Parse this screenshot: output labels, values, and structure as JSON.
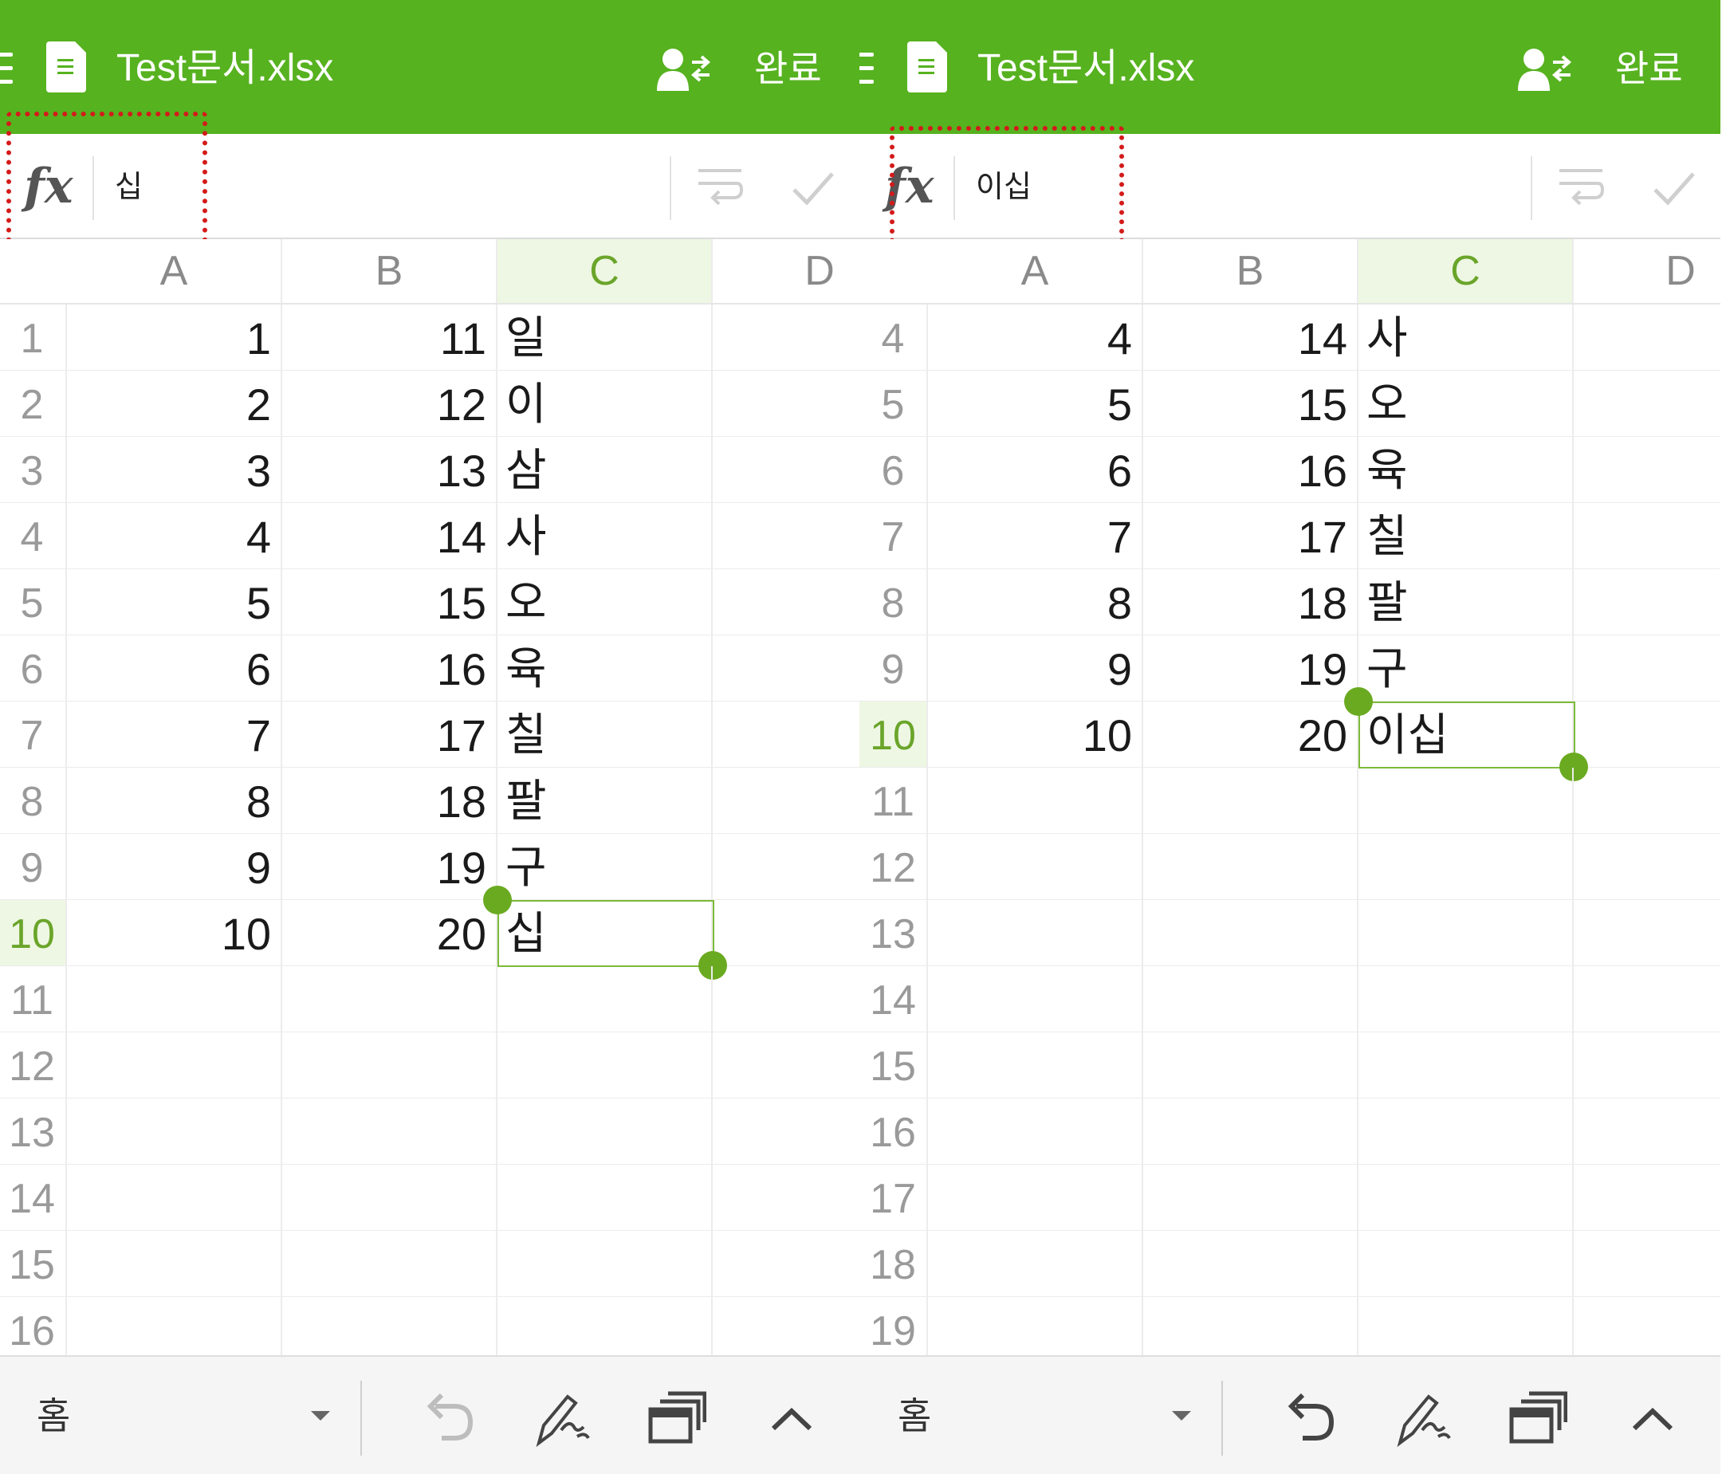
{
  "left": {
    "title": "Test문서.xlsx",
    "done": "완료",
    "formula": "십",
    "columns": [
      "A",
      "B",
      "C",
      "D"
    ],
    "selected_column": "C",
    "rows": [
      {
        "n": "1",
        "a": "1",
        "b": "11",
        "c": "일"
      },
      {
        "n": "2",
        "a": "2",
        "b": "12",
        "c": "이"
      },
      {
        "n": "3",
        "a": "3",
        "b": "13",
        "c": "삼"
      },
      {
        "n": "4",
        "a": "4",
        "b": "14",
        "c": "사"
      },
      {
        "n": "5",
        "a": "5",
        "b": "15",
        "c": "오"
      },
      {
        "n": "6",
        "a": "6",
        "b": "16",
        "c": "육"
      },
      {
        "n": "7",
        "a": "7",
        "b": "17",
        "c": "칠"
      },
      {
        "n": "8",
        "a": "8",
        "b": "18",
        "c": "팔"
      },
      {
        "n": "9",
        "a": "9",
        "b": "19",
        "c": "구"
      },
      {
        "n": "10",
        "a": "10",
        "b": "20",
        "c": "십"
      },
      {
        "n": "11",
        "a": "",
        "b": "",
        "c": ""
      },
      {
        "n": "12",
        "a": "",
        "b": "",
        "c": ""
      },
      {
        "n": "13",
        "a": "",
        "b": "",
        "c": ""
      },
      {
        "n": "14",
        "a": "",
        "b": "",
        "c": ""
      },
      {
        "n": "15",
        "a": "",
        "b": "",
        "c": ""
      },
      {
        "n": "16",
        "a": "",
        "b": "",
        "c": ""
      }
    ],
    "selected_row": "10",
    "toolbar": {
      "home": "홈",
      "undo_enabled": false
    },
    "icons": [
      "menu-icon",
      "spreadsheet-doc-icon",
      "share-user-icon",
      "fx-icon",
      "wrap-text-icon",
      "check-icon",
      "dropdown-arrow-icon",
      "undo-icon",
      "pen-icon",
      "window-switch-icon",
      "chevron-up-icon"
    ]
  },
  "right": {
    "title": "Test문서.xlsx",
    "done": "완료",
    "formula": "이십",
    "columns": [
      "A",
      "B",
      "C",
      "D"
    ],
    "selected_column": "C",
    "rows": [
      {
        "n": "4",
        "a": "4",
        "b": "14",
        "c": "사"
      },
      {
        "n": "5",
        "a": "5",
        "b": "15",
        "c": "오"
      },
      {
        "n": "6",
        "a": "6",
        "b": "16",
        "c": "육"
      },
      {
        "n": "7",
        "a": "7",
        "b": "17",
        "c": "칠"
      },
      {
        "n": "8",
        "a": "8",
        "b": "18",
        "c": "팔"
      },
      {
        "n": "9",
        "a": "9",
        "b": "19",
        "c": "구"
      },
      {
        "n": "10",
        "a": "10",
        "b": "20",
        "c": "이십"
      },
      {
        "n": "11",
        "a": "",
        "b": "",
        "c": ""
      },
      {
        "n": "12",
        "a": "",
        "b": "",
        "c": ""
      },
      {
        "n": "13",
        "a": "",
        "b": "",
        "c": ""
      },
      {
        "n": "14",
        "a": "",
        "b": "",
        "c": ""
      },
      {
        "n": "15",
        "a": "",
        "b": "",
        "c": ""
      },
      {
        "n": "16",
        "a": "",
        "b": "",
        "c": ""
      },
      {
        "n": "17",
        "a": "",
        "b": "",
        "c": ""
      },
      {
        "n": "18",
        "a": "",
        "b": "",
        "c": ""
      },
      {
        "n": "19",
        "a": "",
        "b": "",
        "c": ""
      }
    ],
    "selected_row": "10",
    "toolbar": {
      "home": "홈",
      "undo_enabled": true
    },
    "icons": [
      "menu-icon",
      "spreadsheet-doc-icon",
      "share-user-icon",
      "fx-icon",
      "wrap-text-icon",
      "check-icon",
      "dropdown-arrow-icon",
      "undo-icon",
      "pen-icon",
      "window-switch-icon",
      "chevron-up-icon"
    ]
  },
  "colors": {
    "header_green": "#56b21f",
    "selection_green": "#6aaa21",
    "highlight_red": "#d41a1a",
    "selected_header_bg": "#eef7e3"
  }
}
